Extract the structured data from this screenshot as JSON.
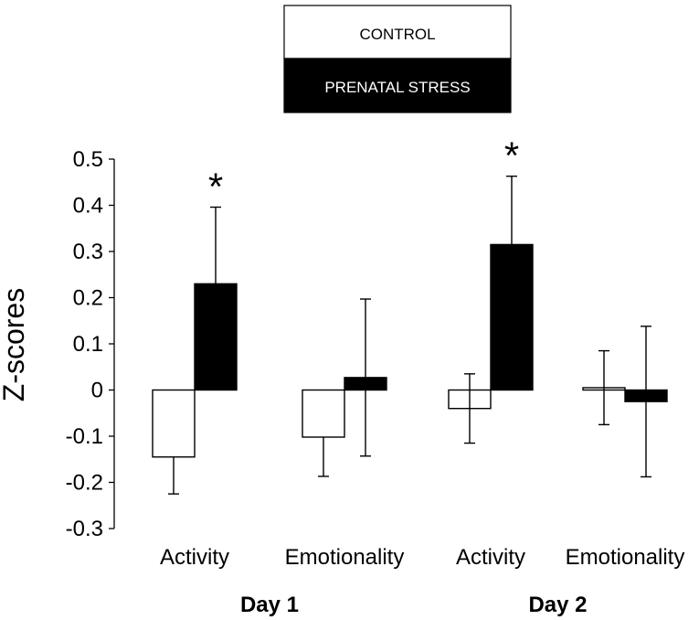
{
  "chart_data": {
    "type": "bar",
    "title": "",
    "ylabel": "Z-scores",
    "xlabel": "",
    "ylim": [
      -0.3,
      0.5
    ],
    "yticks": [
      0.5,
      0.4,
      0.3,
      0.2,
      0.1,
      0,
      -0.1,
      -0.2,
      -0.3
    ],
    "ytick_labels": [
      "0.5",
      "0.4",
      "0.3",
      "0.2",
      "0.1",
      "0",
      "-0.1",
      "-0.2",
      "-0.3"
    ],
    "groups": [
      "Day 1",
      "Day 2"
    ],
    "categories": [
      "Activity",
      "Emotionality",
      "Activity",
      "Emotionality"
    ],
    "category_group": [
      0,
      0,
      1,
      1
    ],
    "legend_position": "top-center",
    "colors": {
      "control": "#ffffff",
      "prenatal_stress": "#000000",
      "outline": "#000000"
    },
    "series": [
      {
        "name": "CONTROL",
        "fill": "white",
        "values": [
          -0.145,
          -0.102,
          -0.04,
          0.005
        ],
        "errors": [
          0.08,
          0.085,
          0.075,
          0.08
        ],
        "error_direction": [
          "down",
          "down",
          "both",
          "both"
        ]
      },
      {
        "name": "PRENATAL STRESS",
        "fill": "black",
        "values": [
          0.23,
          0.027,
          0.315,
          -0.025
        ],
        "errors": [
          0.166,
          0.17,
          0.148,
          0.163
        ],
        "error_direction": [
          "up",
          "both",
          "up",
          "both"
        ]
      }
    ],
    "annotations": [
      {
        "text": "*",
        "category_index": 0,
        "series_index": 1
      },
      {
        "text": "*",
        "category_index": 2,
        "series_index": 1
      }
    ]
  }
}
